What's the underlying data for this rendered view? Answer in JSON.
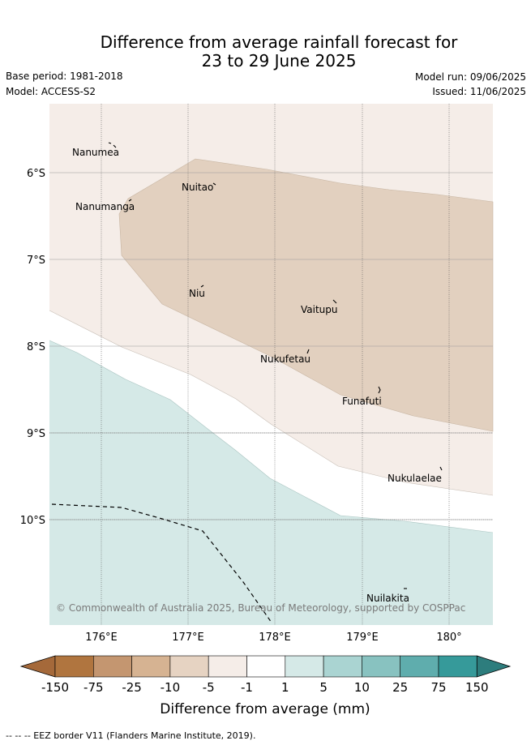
{
  "title": {
    "line1": "Difference from average rainfall forecast for",
    "line2": "23 to 29 June 2025"
  },
  "meta": {
    "base_period": "Base period: 1981-2018",
    "model": "Model: ACCESS-S2",
    "model_run": "Model run: 09/06/2025",
    "issued": "Issued: 11/06/2025"
  },
  "map": {
    "lat_labels": [
      "6°S",
      "7°S",
      "8°S",
      "9°S",
      "10°S"
    ],
    "lon_labels": [
      "176°E",
      "177°E",
      "178°E",
      "179°E",
      "180°"
    ],
    "islands": [
      {
        "name": "Nanumea"
      },
      {
        "name": "Nuitao"
      },
      {
        "name": "Nanumanga"
      },
      {
        "name": "Niu"
      },
      {
        "name": "Vaitupu"
      },
      {
        "name": "Nukufetau"
      },
      {
        "name": "Funafuti"
      },
      {
        "name": "Nukulaelae"
      },
      {
        "name": "Nuilakita"
      }
    ],
    "copyright": "© Commonwealth of Australia 2025, Bureau of Meteorology, supported by COSPPac",
    "eez_legend": "-- -- -- EEZ border V11 (Flanders Marine Institute, 2019).",
    "colors": {
      "ocean_below": "#d5e9e7",
      "near_avg": "#ffffff",
      "slightly_dry": "#f5ede8",
      "dry": "#e2d0bf"
    }
  },
  "colorbar": {
    "title": "Difference from average (mm)",
    "ticks": [
      "-150",
      "-75",
      "-25",
      "-10",
      "-5",
      "-1",
      "1",
      "5",
      "10",
      "25",
      "75",
      "150"
    ],
    "colors": [
      "#a5693a",
      "#b0753f",
      "#c49670",
      "#d6b392",
      "#e6d3c2",
      "#f5ede8",
      "#ffffff",
      "#d5e9e7",
      "#aad4d2",
      "#88c2c0",
      "#5fadad",
      "#369a9a",
      "#2d7d7d"
    ]
  }
}
